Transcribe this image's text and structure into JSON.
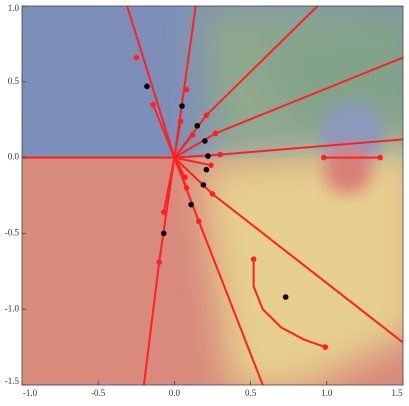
{
  "chart_data": {
    "type": "scatter",
    "xlim": [
      -1.0,
      1.5
    ],
    "ylim": [
      -1.5,
      1.0
    ],
    "xticks": [
      {
        "value": -1.0,
        "label": "-1.0"
      },
      {
        "value": -0.5,
        "label": "-0.5"
      },
      {
        "value": 0,
        "label": "0.0"
      },
      {
        "value": 0.5,
        "label": "0.5"
      },
      {
        "value": 1.0,
        "label": "1.0"
      },
      {
        "value": 1.5,
        "label": "1.5"
      }
    ],
    "yticks": [
      {
        "value": 1.0,
        "label": "1.0"
      },
      {
        "value": 0.5,
        "label": "0.5"
      },
      {
        "value": 0,
        "label": "0.0"
      },
      {
        "value": -0.5,
        "label": "-0.5"
      },
      {
        "value": -1.0,
        "label": "-1.0"
      },
      {
        "value": -1.5,
        "label": "-1.5"
      }
    ],
    "series": [
      {
        "mode": "line",
        "color": "#ff2020",
        "x": [
          -1.0,
          0
        ],
        "y": [
          0,
          0
        ]
      },
      {
        "mode": "line",
        "color": "#ff2020",
        "x": [
          0,
          -0.31
        ],
        "y": [
          0,
          1.0
        ]
      },
      {
        "mode": "line",
        "color": "#ff2020",
        "x": [
          0,
          -0.14
        ],
        "y": [
          0,
          0.35
        ]
      },
      {
        "mode": "line",
        "color": "#ff2020",
        "x": [
          0,
          0.14
        ],
        "y": [
          0,
          1.0
        ]
      },
      {
        "mode": "line",
        "color": "#ff2020",
        "x": [
          0,
          0.04
        ],
        "y": [
          0,
          0.24
        ]
      },
      {
        "mode": "line",
        "color": "#ff2020",
        "x": [
          0,
          0.21,
          0.94
        ],
        "y": [
          0,
          0.28,
          1.0
        ]
      },
      {
        "mode": "line",
        "color": "#ff2020",
        "x": [
          0,
          0.12
        ],
        "y": [
          0,
          0.15
        ]
      },
      {
        "mode": "line",
        "color": "#ff2020",
        "x": [
          0,
          0.27,
          1.5
        ],
        "y": [
          0,
          0.16,
          0.66
        ]
      },
      {
        "mode": "line",
        "color": "#ff2020",
        "x": [
          0,
          0.3,
          1.5
        ],
        "y": [
          0,
          0.02,
          0.12
        ]
      },
      {
        "mode": "line",
        "color": "#ff2020",
        "x": [
          0,
          0.24
        ],
        "y": [
          0,
          -0.05
        ]
      },
      {
        "mode": "line",
        "color": "#ff2020",
        "x": [
          0,
          0.07
        ],
        "y": [
          0,
          -0.13
        ]
      },
      {
        "mode": "line",
        "color": "#ff2020",
        "x": [
          0,
          0.08
        ],
        "y": [
          0,
          -0.2
        ]
      },
      {
        "mode": "line",
        "color": "#ff2020",
        "x": [
          0,
          0.25,
          1.5
        ],
        "y": [
          0,
          -0.24,
          -1.22
        ]
      },
      {
        "mode": "line",
        "color": "#ff2020",
        "x": [
          0,
          0.16,
          0.58
        ],
        "y": [
          0,
          -0.42,
          -1.5
        ]
      },
      {
        "mode": "line",
        "color": "#ff2020",
        "x": [
          0,
          -0.07
        ],
        "y": [
          0,
          -0.36
        ]
      },
      {
        "mode": "line",
        "color": "#ff2020",
        "x": [
          0,
          -0.1,
          -0.2
        ],
        "y": [
          0,
          -0.69,
          -1.5
        ]
      },
      {
        "mode": "line",
        "color": "#ff2020",
        "x": [
          0.98,
          1.35
        ],
        "y": [
          0,
          0
        ]
      },
      {
        "mode": "line",
        "color": "#ff2020",
        "x": [
          0.52,
          0.52,
          0.58,
          0.7,
          0.85,
          0.99
        ],
        "y": [
          -0.67,
          -0.85,
          -1.0,
          -1.12,
          -1.2,
          -1.25
        ]
      },
      {
        "mode": "markers",
        "color": "#ff2020",
        "x": [
          -0.25,
          -0.14,
          0.08,
          0.04,
          0.21,
          0.12,
          0.27,
          0.3,
          0.24,
          0.07,
          0.08,
          0.25,
          0.16,
          -0.07,
          -0.1,
          0.98,
          1.35,
          0.52,
          0.99
        ],
        "y": [
          0.66,
          0.35,
          0.45,
          0.24,
          0.28,
          0.15,
          0.16,
          0.02,
          -0.05,
          -0.13,
          -0.2,
          -0.24,
          -0.42,
          -0.36,
          -0.69,
          0,
          0,
          -0.67,
          -1.25
        ]
      },
      {
        "mode": "markers",
        "color": "#000000",
        "x": [
          -0.18,
          0.05,
          0.15,
          0.2,
          0.22,
          0.21,
          0.19,
          0.11,
          -0.07,
          0.73
        ],
        "y": [
          0.47,
          0.34,
          0.21,
          0.11,
          0.01,
          -0.08,
          -0.18,
          -0.31,
          -0.5,
          -0.92
        ]
      }
    ]
  }
}
